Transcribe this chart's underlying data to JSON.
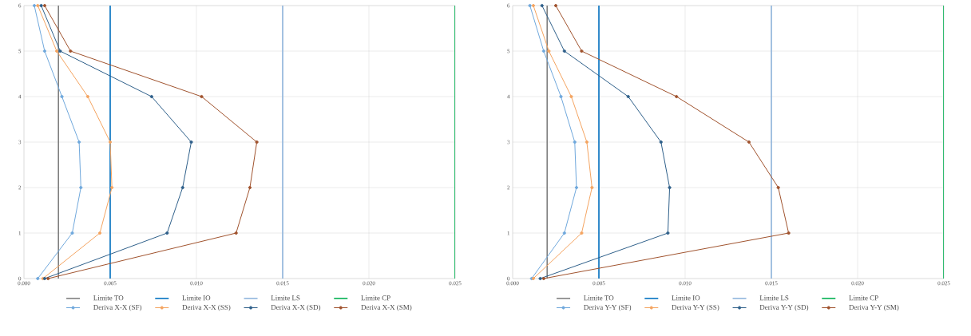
{
  "chart_data": [
    {
      "type": "line",
      "xlim": [
        0,
        0.025
      ],
      "ylim": [
        0,
        6
      ],
      "xticks": [
        {
          "value": 0,
          "label": "0.000"
        },
        {
          "value": 0.005,
          "label": "0.005"
        },
        {
          "value": 0.01,
          "label": "0.010"
        },
        {
          "value": 0.015,
          "label": "0.015"
        },
        {
          "value": 0.02,
          "label": "0.020"
        },
        {
          "value": 0.025,
          "label": "0.025"
        }
      ],
      "yticks": [
        0,
        1,
        2,
        3,
        4,
        5,
        6
      ],
      "grid": true,
      "legend": "bottom",
      "marker": "circle",
      "ref_lines": [
        {
          "axis": "x",
          "value": 0.002,
          "label": "Limite TO",
          "color": "#7f7f7f"
        },
        {
          "axis": "x",
          "value": 0.005,
          "label": "Limite IO",
          "color": "#0070c0"
        },
        {
          "axis": "x",
          "value": 0.015,
          "label": "Limite LS",
          "color": "#8fb4dc"
        },
        {
          "axis": "x",
          "value": 0.025,
          "label": "Limite CP",
          "color": "#00b050"
        }
      ],
      "series": [
        {
          "name": "Deriva X-X (SF)",
          "color": "#6fa8dc",
          "x": [
            0.0008,
            0.0028,
            0.0033,
            0.0032,
            0.0022,
            0.0012,
            0.0006
          ],
          "values": [
            0,
            1,
            2,
            3,
            4,
            5,
            6
          ]
        },
        {
          "name": "Deriva X-X (SS)",
          "color": "#f4a460",
          "x": [
            0.0011,
            0.0044,
            0.0051,
            0.005,
            0.0037,
            0.0019,
            0.0008
          ],
          "values": [
            0,
            1,
            2,
            3,
            4,
            5,
            6
          ]
        },
        {
          "name": "Deriva X-X (SD)",
          "color": "#2e5f8a",
          "x": [
            0.0012,
            0.0083,
            0.0092,
            0.0097,
            0.0074,
            0.0021,
            0.001
          ],
          "values": [
            0,
            1,
            2,
            3,
            4,
            5,
            6
          ]
        },
        {
          "name": "Deriva X-X (SM)",
          "color": "#a0522d",
          "x": [
            0.0014,
            0.0123,
            0.0131,
            0.0135,
            0.0103,
            0.0027,
            0.0012
          ],
          "values": [
            0,
            1,
            2,
            3,
            4,
            5,
            6
          ]
        }
      ]
    },
    {
      "type": "line",
      "xlim": [
        0,
        0.025
      ],
      "ylim": [
        0,
        6
      ],
      "xticks": [
        {
          "value": 0,
          "label": "0.000"
        },
        {
          "value": 0.005,
          "label": "0.005"
        },
        {
          "value": 0.01,
          "label": "0.010"
        },
        {
          "value": 0.015,
          "label": "0.015"
        },
        {
          "value": 0.02,
          "label": "0.020"
        },
        {
          "value": 0.025,
          "label": "0.025"
        }
      ],
      "yticks": [
        0,
        1,
        2,
        3,
        4,
        5,
        6
      ],
      "grid": true,
      "legend": "bottom",
      "marker": "circle",
      "ref_lines": [
        {
          "axis": "x",
          "value": 0.002,
          "label": "Limite TO",
          "color": "#7f7f7f"
        },
        {
          "axis": "x",
          "value": 0.005,
          "label": "Limite IO",
          "color": "#0070c0"
        },
        {
          "axis": "x",
          "value": 0.015,
          "label": "Limite LS",
          "color": "#8fb4dc"
        },
        {
          "axis": "x",
          "value": 0.025,
          "label": "Limite CP",
          "color": "#00b050"
        }
      ],
      "series": [
        {
          "name": "Deriva Y-Y (SF)",
          "color": "#6fa8dc",
          "x": [
            0.0011,
            0.003,
            0.0037,
            0.0036,
            0.0028,
            0.0018,
            0.001
          ],
          "values": [
            0,
            1,
            2,
            3,
            4,
            5,
            6
          ]
        },
        {
          "name": "Deriva Y-Y (SS)",
          "color": "#f4a460",
          "x": [
            0.0012,
            0.004,
            0.0046,
            0.0043,
            0.0034,
            0.0021,
            0.0012
          ],
          "values": [
            0,
            1,
            2,
            3,
            4,
            5,
            6
          ]
        },
        {
          "name": "Deriva Y-Y (SD)",
          "color": "#2e5f8a",
          "x": [
            0.0016,
            0.009,
            0.0091,
            0.0086,
            0.0067,
            0.003,
            0.0017
          ],
          "values": [
            0,
            1,
            2,
            3,
            4,
            5,
            6
          ]
        },
        {
          "name": "Deriva Y-Y (SM)",
          "color": "#a0522d",
          "x": [
            0.0018,
            0.016,
            0.0154,
            0.0137,
            0.0095,
            0.004,
            0.0025
          ],
          "values": [
            0,
            1,
            2,
            3,
            4,
            5,
            6
          ]
        }
      ]
    }
  ]
}
